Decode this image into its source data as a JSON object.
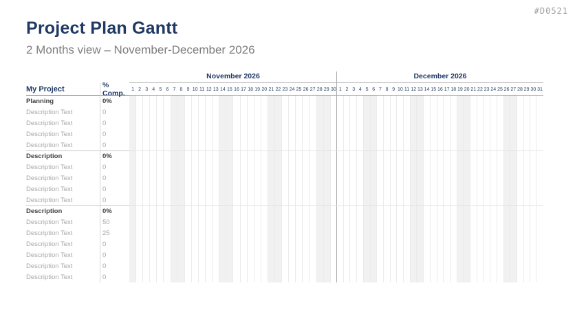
{
  "page": {
    "tag": "#D0521",
    "title": "Project Plan Gantt",
    "subtitle": "2 Months view – November-December 2026"
  },
  "chart_data": {
    "type": "table",
    "title": "Project Plan Gantt",
    "subtitle": "2 Months view – November-December 2026",
    "columns": [
      "My Project",
      "% Comp."
    ],
    "timeline": {
      "months": [
        {
          "name": "November 2026",
          "days": 30,
          "weekend_days": [
            1,
            7,
            8,
            14,
            15,
            21,
            22,
            28,
            29
          ]
        },
        {
          "name": "December 2026",
          "days": 31,
          "weekend_days": [
            5,
            6,
            12,
            13,
            19,
            20,
            26,
            27
          ]
        }
      ],
      "weekend_shading": true,
      "grid": "daily vertical columns, no bars plotted"
    },
    "rows": [
      {
        "label": "Planning",
        "comp": "0%",
        "type": "section"
      },
      {
        "label": "Description Text",
        "comp": "0",
        "type": "item"
      },
      {
        "label": "Description Text",
        "comp": "0",
        "type": "item"
      },
      {
        "label": "Description Text",
        "comp": "0",
        "type": "item"
      },
      {
        "label": "Description Text",
        "comp": "0",
        "type": "item"
      },
      {
        "label": "Description",
        "comp": "0%",
        "type": "section"
      },
      {
        "label": "Description Text",
        "comp": "0",
        "type": "item"
      },
      {
        "label": "Description Text",
        "comp": "0",
        "type": "item"
      },
      {
        "label": "Description Text",
        "comp": "0",
        "type": "item"
      },
      {
        "label": "Description Text",
        "comp": "0",
        "type": "item"
      },
      {
        "label": "Description",
        "comp": "0%",
        "type": "section"
      },
      {
        "label": "Description Text",
        "comp": "50",
        "type": "item"
      },
      {
        "label": "Description Text",
        "comp": "25",
        "type": "item"
      },
      {
        "label": "Description Text",
        "comp": "0",
        "type": "item"
      },
      {
        "label": "Description Text",
        "comp": "0",
        "type": "item"
      },
      {
        "label": "Description Text",
        "comp": "0",
        "type": "item"
      },
      {
        "label": "Description Text",
        "comp": "0",
        "type": "item"
      }
    ]
  },
  "colors": {
    "accent_navy": "#1F3864",
    "subtitle_gray": "#7F7F7F",
    "muted_row_text": "#A6A6A6",
    "section_row_text": "#3F3F3F",
    "weekend_fill": "#F1F1F1",
    "tag_gray": "#9E9E9E"
  }
}
